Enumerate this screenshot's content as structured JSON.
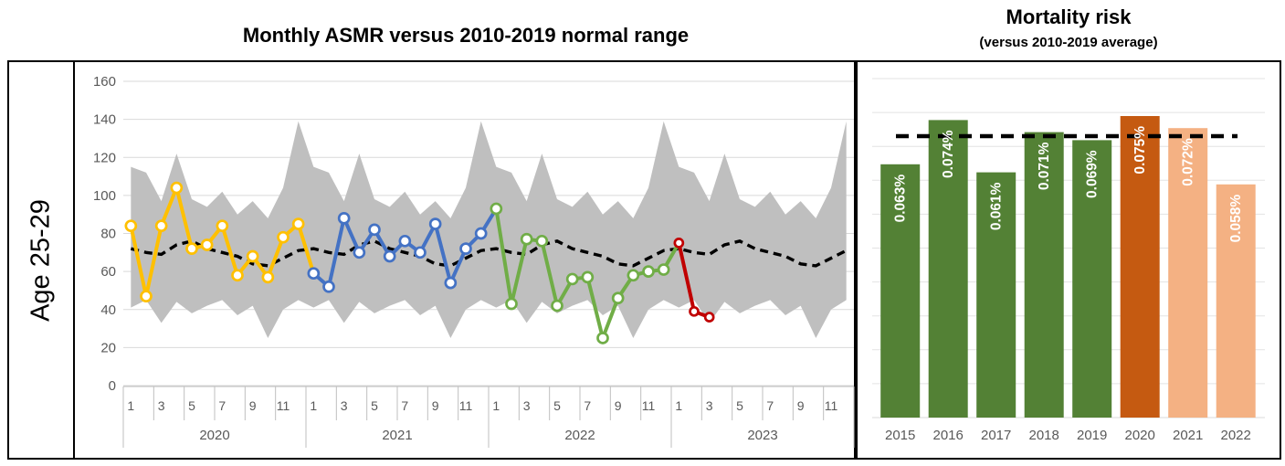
{
  "left_panel": {
    "row_label": "Age 25-29",
    "title": "Monthly ASMR versus 2010-2019 normal range"
  },
  "right_panel": {
    "title": "Mortality risk",
    "subtitle": "(versus 2010-2019 average)"
  },
  "chart_data": [
    {
      "type": "line",
      "title": "Monthly ASMR versus 2010-2019 normal range",
      "row_label": "Age 25-29",
      "ylabel": "",
      "ylim": [
        0,
        160
      ],
      "yticks": [
        0,
        20,
        40,
        60,
        80,
        100,
        120,
        140,
        160
      ],
      "grid": true,
      "legend": "none",
      "years": [
        "2020",
        "2021",
        "2022",
        "2023"
      ],
      "month_tick_labels": [
        "1",
        "3",
        "5",
        "7",
        "9",
        "11"
      ],
      "months_per_year": 12,
      "normal_range_band": {
        "name": "2010-2019 normal range",
        "color": "#BFBFBF",
        "upper_by_month": [
          115,
          112,
          97,
          122,
          98,
          94,
          102,
          90,
          97,
          88,
          104,
          139
        ],
        "lower_by_month": [
          41,
          45,
          33,
          44,
          38,
          42,
          45,
          37,
          42,
          25,
          40,
          45
        ],
        "repeats_each_year": true
      },
      "average_line": {
        "name": "2010-2019 average",
        "style": "dashed",
        "color": "#000000",
        "values_by_month": [
          72,
          70,
          69,
          74,
          76,
          72,
          70,
          68,
          64,
          63,
          67,
          71
        ],
        "repeats_each_year": true
      },
      "series": [
        {
          "name": "2020",
          "color": "#FFC000",
          "values": [
            84,
            47,
            84,
            104,
            72,
            74,
            84,
            58,
            68,
            57,
            78,
            85
          ]
        },
        {
          "name": "2021",
          "color": "#4472C4",
          "values": [
            59,
            52,
            88,
            70,
            82,
            68,
            76,
            70,
            85,
            54,
            72,
            80
          ]
        },
        {
          "name": "2022",
          "color": "#70AD47",
          "values": [
            93,
            43,
            77,
            76,
            42,
            56,
            57,
            25,
            46,
            58,
            60,
            61
          ]
        },
        {
          "name": "2023",
          "color": "#C00000",
          "values": [
            75,
            39,
            36
          ]
        }
      ]
    },
    {
      "type": "bar",
      "title": "Mortality risk",
      "subtitle": "(versus 2010-2019 average)",
      "categories": [
        "2015",
        "2016",
        "2017",
        "2018",
        "2019",
        "2020",
        "2021",
        "2022"
      ],
      "values": [
        0.063,
        0.074,
        0.061,
        0.071,
        0.069,
        0.075,
        0.072,
        0.058
      ],
      "bar_labels": [
        "0.063%",
        "0.074%",
        "0.061%",
        "0.071%",
        "0.069%",
        "0.075%",
        "0.072%",
        "0.058%"
      ],
      "bar_colors": [
        "#538135",
        "#538135",
        "#538135",
        "#538135",
        "#538135",
        "#C55A11",
        "#F4B183",
        "#F4B183"
      ],
      "label_color": "#FFFFFF",
      "reference_line": {
        "name": "2010-2019 average",
        "style": "dashed",
        "color": "#000000",
        "value": 0.07
      },
      "ylim": [
        0,
        0.085
      ],
      "grid": true,
      "legend": "none"
    }
  ],
  "colors": {
    "grid_line": "#D9D9D9",
    "axis_text": "#595959",
    "axis_line": "#BFBFBF",
    "band_gray": "#BFBFBF",
    "y2020": "#FFC000",
    "y2021": "#4472C4",
    "y2022": "#70AD47",
    "y2023": "#C00000",
    "bar_green": "#538135",
    "bar_dark_orange": "#C55A11",
    "bar_light_orange": "#F4B183"
  }
}
